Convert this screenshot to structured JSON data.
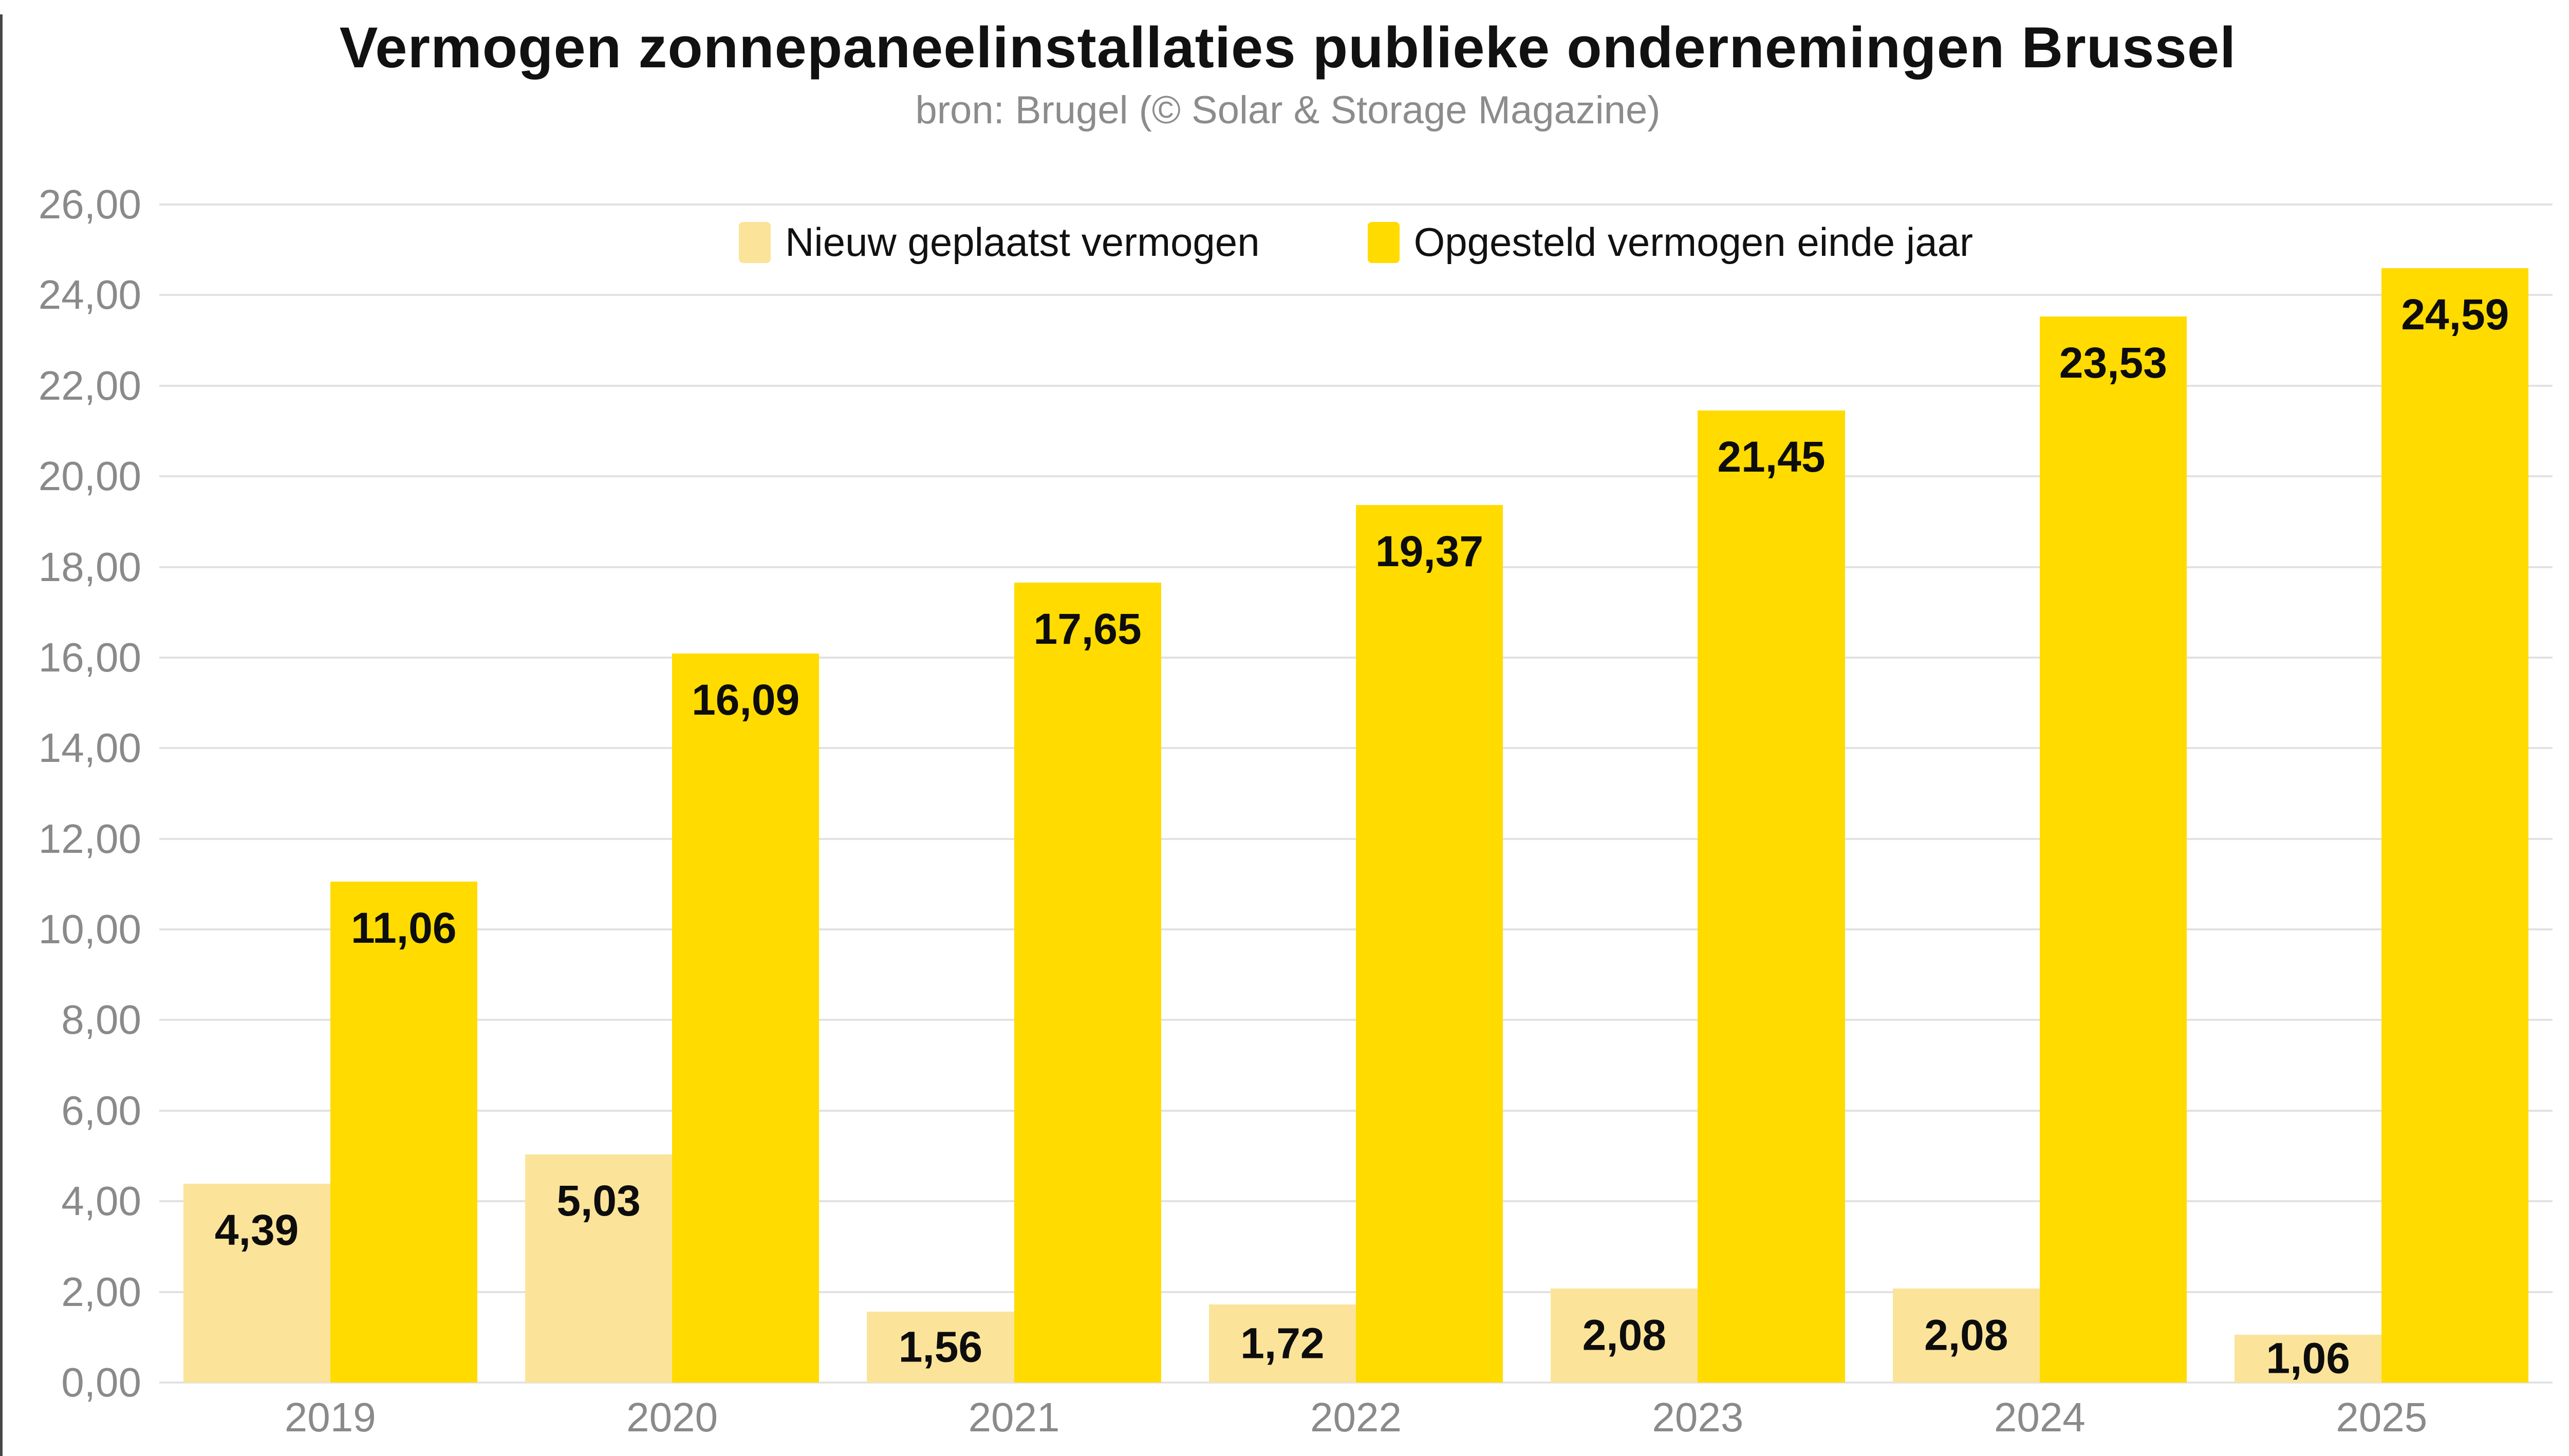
{
  "title": "Vermogen zonnepaneelinstallaties publieke ondernemingen Brussel",
  "subtitle": "bron: Brugel (© Solar & Storage Magazine)",
  "colors": {
    "series_new": "#FBE49A",
    "series_cumulative": "#FFDB00",
    "gridline": "#e2e2e2",
    "axis_text": "#8a8a8a",
    "title_text": "#111111",
    "subtitle_text": "#8c8c8c",
    "bar_label_text": "#0d0d0d"
  },
  "chart_data": {
    "type": "bar",
    "title": "Vermogen zonnepaneelinstallaties publieke ondernemingen Brussel",
    "subtitle": "bron: Brugel (© Solar & Storage Magazine)",
    "categories": [
      "2019",
      "2020",
      "2021",
      "2022",
      "2023",
      "2024",
      "2025"
    ],
    "series": [
      {
        "name": "Nieuw geplaatst vermogen",
        "color": "#FBE49A",
        "values": [
          4.39,
          5.03,
          1.56,
          1.72,
          2.08,
          2.08,
          1.06
        ],
        "value_labels": [
          "4,39",
          "5,03",
          "1,56",
          "1,72",
          "2,08",
          "2,08",
          "1,06"
        ]
      },
      {
        "name": "Opgesteld vermogen einde jaar",
        "color": "#FFDB00",
        "values": [
          11.06,
          16.09,
          17.65,
          19.37,
          21.45,
          23.53,
          24.59
        ],
        "value_labels": [
          "11,06",
          "16,09",
          "17,65",
          "19,37",
          "21,45",
          "23,53",
          "24,59"
        ]
      }
    ],
    "xlabel": "",
    "ylabel": "",
    "ylim": [
      0,
      26
    ],
    "ytick_step": 2,
    "ytick_labels": [
      "0,00",
      "2,00",
      "4,00",
      "6,00",
      "8,00",
      "10,00",
      "12,00",
      "14,00",
      "16,00",
      "18,00",
      "20,00",
      "22,00",
      "24,00",
      "26,00"
    ],
    "grid": true,
    "legend_position": "top-center"
  }
}
